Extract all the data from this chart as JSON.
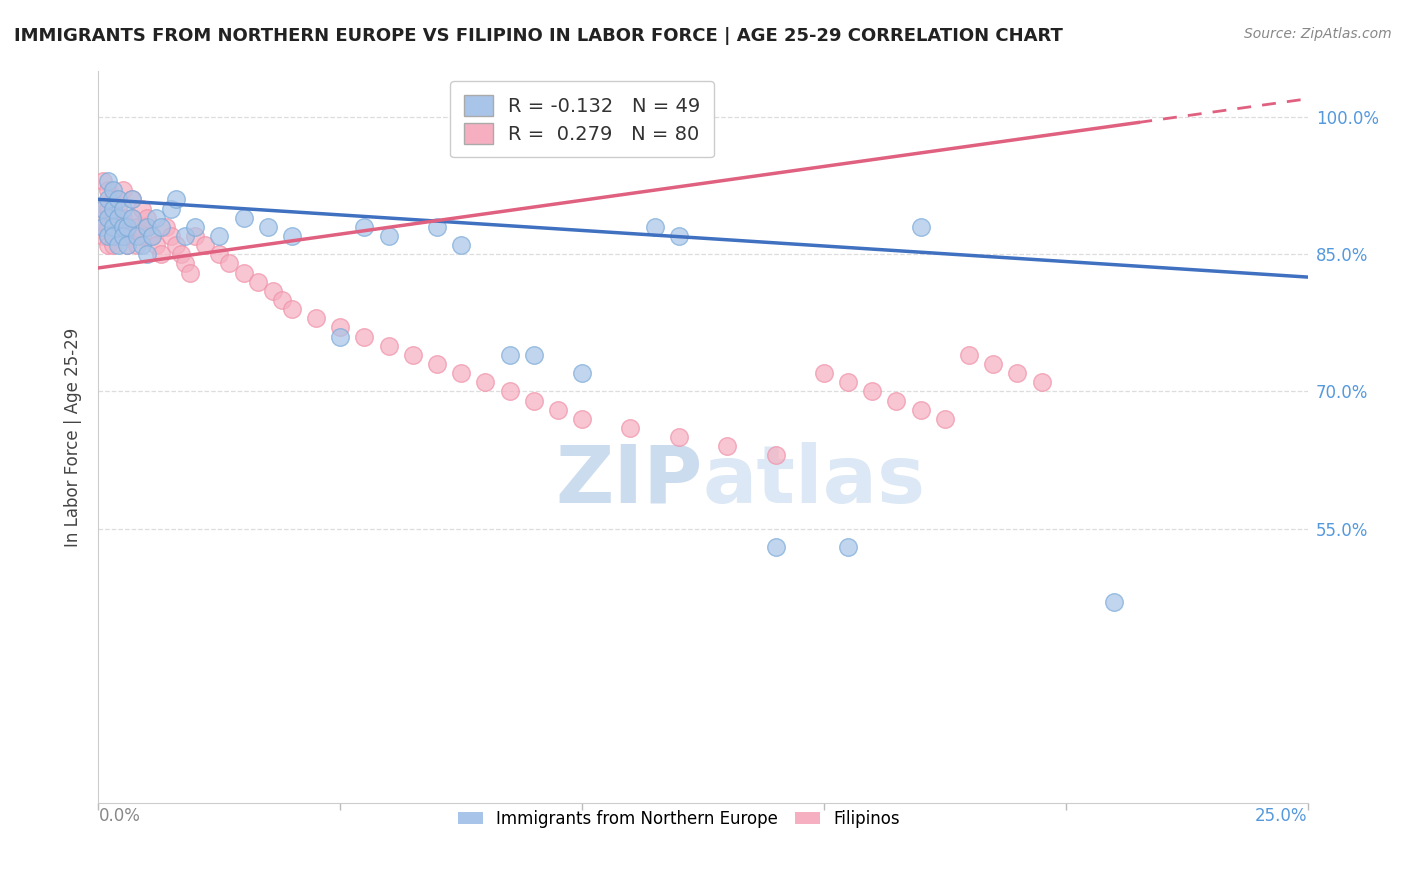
{
  "title": "IMMIGRANTS FROM NORTHERN EUROPE VS FILIPINO IN LABOR FORCE | AGE 25-29 CORRELATION CHART",
  "source": "Source: ZipAtlas.com",
  "ylabel": "In Labor Force | Age 25-29",
  "xlim": [
    0.0,
    0.25
  ],
  "ylim": [
    0.25,
    1.05
  ],
  "ytick_vals": [
    0.55,
    0.7,
    0.85,
    1.0
  ],
  "ytick_labels": [
    "55.0%",
    "70.0%",
    "85.0%",
    "100.0%"
  ],
  "blue_color": "#a8c4e8",
  "pink_color": "#f5afc0",
  "blue_edge_color": "#7aaad8",
  "pink_edge_color": "#f090a8",
  "blue_line_color": "#4070c0",
  "pink_line_color": "#e06080",
  "watermark_color": "#ccdcef",
  "legend_blue_label": "R = -0.132   N = 49",
  "legend_pink_label": "R =  0.279   N = 80",
  "legend_blue_series": "Immigrants from Northern Europe",
  "legend_pink_series": "Filipinos",
  "blue_R": -0.132,
  "blue_N": 49,
  "pink_R": 0.279,
  "pink_N": 80,
  "blue_line_x0": 0.0,
  "blue_line_y0": 0.91,
  "blue_line_x1": 0.25,
  "blue_line_y1": 0.825,
  "pink_line_x0": 0.0,
  "pink_line_y0": 0.835,
  "pink_line_x1": 0.25,
  "pink_line_y1": 1.02,
  "pink_line_solid_end": 0.215,
  "background_color": "#ffffff",
  "grid_color": "#dddddd",
  "title_color": "#222222",
  "axis_color": "#888888",
  "right_axis_color": "#5599dd",
  "blue_x": [
    0.001,
    0.001,
    0.002,
    0.002,
    0.002,
    0.002,
    0.003,
    0.003,
    0.003,
    0.003,
    0.004,
    0.004,
    0.004,
    0.005,
    0.005,
    0.005,
    0.006,
    0.006,
    0.007,
    0.007,
    0.008,
    0.009,
    0.01,
    0.01,
    0.011,
    0.012,
    0.013,
    0.015,
    0.016,
    0.018,
    0.02,
    0.025,
    0.03,
    0.035,
    0.04,
    0.05,
    0.055,
    0.06,
    0.07,
    0.075,
    0.085,
    0.09,
    0.1,
    0.115,
    0.12,
    0.14,
    0.155,
    0.17,
    0.21
  ],
  "blue_y": [
    0.88,
    0.9,
    0.87,
    0.89,
    0.91,
    0.93,
    0.88,
    0.87,
    0.9,
    0.92,
    0.86,
    0.89,
    0.91,
    0.88,
    0.87,
    0.9,
    0.86,
    0.88,
    0.89,
    0.91,
    0.87,
    0.86,
    0.88,
    0.85,
    0.87,
    0.89,
    0.88,
    0.9,
    0.91,
    0.87,
    0.88,
    0.87,
    0.89,
    0.88,
    0.87,
    0.76,
    0.88,
    0.87,
    0.88,
    0.86,
    0.74,
    0.74,
    0.72,
    0.88,
    0.87,
    0.53,
    0.53,
    0.88,
    0.47
  ],
  "pink_x": [
    0.001,
    0.001,
    0.001,
    0.001,
    0.002,
    0.002,
    0.002,
    0.002,
    0.002,
    0.002,
    0.003,
    0.003,
    0.003,
    0.003,
    0.003,
    0.003,
    0.004,
    0.004,
    0.004,
    0.004,
    0.005,
    0.005,
    0.005,
    0.005,
    0.006,
    0.006,
    0.006,
    0.007,
    0.007,
    0.007,
    0.008,
    0.008,
    0.009,
    0.009,
    0.01,
    0.01,
    0.011,
    0.012,
    0.013,
    0.014,
    0.015,
    0.016,
    0.017,
    0.018,
    0.019,
    0.02,
    0.022,
    0.025,
    0.027,
    0.03,
    0.033,
    0.036,
    0.038,
    0.04,
    0.045,
    0.05,
    0.055,
    0.06,
    0.065,
    0.07,
    0.075,
    0.08,
    0.085,
    0.09,
    0.095,
    0.1,
    0.11,
    0.12,
    0.13,
    0.14,
    0.15,
    0.155,
    0.16,
    0.165,
    0.17,
    0.175,
    0.18,
    0.185,
    0.19,
    0.195
  ],
  "pink_y": [
    0.88,
    0.9,
    0.87,
    0.93,
    0.89,
    0.88,
    0.87,
    0.86,
    0.92,
    0.9,
    0.91,
    0.88,
    0.87,
    0.9,
    0.86,
    0.89,
    0.91,
    0.88,
    0.87,
    0.9,
    0.89,
    0.88,
    0.87,
    0.92,
    0.88,
    0.87,
    0.86,
    0.91,
    0.89,
    0.87,
    0.88,
    0.86,
    0.87,
    0.9,
    0.89,
    0.88,
    0.87,
    0.86,
    0.85,
    0.88,
    0.87,
    0.86,
    0.85,
    0.84,
    0.83,
    0.87,
    0.86,
    0.85,
    0.84,
    0.83,
    0.82,
    0.81,
    0.8,
    0.79,
    0.78,
    0.77,
    0.76,
    0.75,
    0.74,
    0.73,
    0.72,
    0.71,
    0.7,
    0.69,
    0.68,
    0.67,
    0.66,
    0.65,
    0.64,
    0.63,
    0.72,
    0.71,
    0.7,
    0.69,
    0.68,
    0.67,
    0.74,
    0.73,
    0.72,
    0.71
  ]
}
